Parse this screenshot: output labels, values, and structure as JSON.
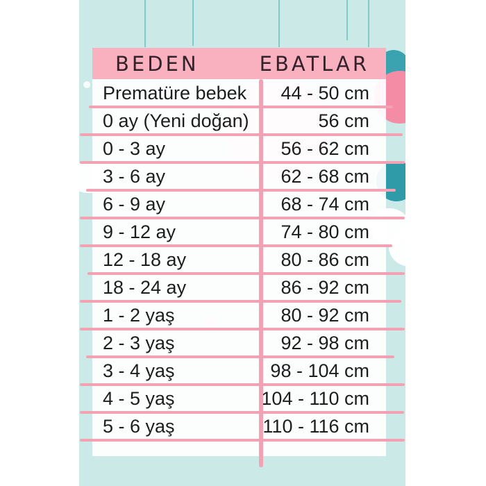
{
  "table": {
    "headers": {
      "size": "BEDEN",
      "range": "EBATLAR"
    },
    "rows": [
      {
        "size": "Prematüre bebek",
        "range": "44 - 50 cm"
      },
      {
        "size": "0 ay (Yeni doğan)",
        "range": "56 cm"
      },
      {
        "size": "0 - 3 ay",
        "range": "56 - 62 cm"
      },
      {
        "size": "3 - 6 ay",
        "range": "62 - 68 cm"
      },
      {
        "size": "6 - 9 ay",
        "range": "68 - 74 cm"
      },
      {
        "size": "9 - 12 ay",
        "range": "74 - 80 cm"
      },
      {
        "size": "12 - 18 ay",
        "range": "80 - 86 cm"
      },
      {
        "size": "18 - 24 ay",
        "range": "86 - 92 cm"
      },
      {
        "size": "1 - 2 yaş",
        "range": "80 - 92 cm"
      },
      {
        "size": "2 - 3 yaş",
        "range": "92 - 98 cm"
      },
      {
        "size": "3 - 4 yaş",
        "range": "98 - 104 cm"
      },
      {
        "size": "4 - 5 yaş",
        "range": "104 - 110 cm"
      },
      {
        "size": "5 - 6 yaş",
        "range": "110 - 116 cm"
      }
    ]
  },
  "colors": {
    "header_pink": "#f9b1c0",
    "grid_line_pink": "#f3a2b3",
    "panel_teal": "#cbe9e6",
    "balloon_pink": "#f58ca6",
    "deep_teal": "#2f9aa8",
    "text_dark": "#1d1d1f"
  }
}
